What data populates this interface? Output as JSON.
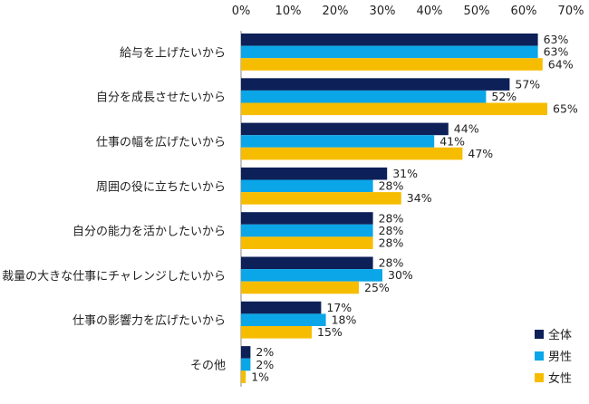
{
  "chart_data": {
    "type": "bar",
    "orientation": "horizontal",
    "categories": [
      "給与を上げたいから",
      "自分を成長させたいから",
      "仕事の幅を広げたいから",
      "周囲の役に立ちたいから",
      "自分の能力を活かしたいから",
      "裁量の大きな仕事にチャレンジしたいから",
      "仕事の影響力を広げたいから",
      "その他"
    ],
    "series": [
      {
        "name": "全体",
        "color": "#0d2158",
        "values": [
          63,
          57,
          44,
          31,
          28,
          28,
          17,
          2
        ]
      },
      {
        "name": "男性",
        "color": "#0aa6e8",
        "values": [
          63,
          52,
          41,
          28,
          28,
          30,
          18,
          2
        ]
      },
      {
        "name": "女性",
        "color": "#f6bd00",
        "values": [
          64,
          65,
          47,
          34,
          28,
          25,
          15,
          1
        ]
      }
    ],
    "x_ticks": [
      "0%",
      "10%",
      "20%",
      "30%",
      "40%",
      "50%",
      "60%",
      "70%"
    ],
    "xlim": [
      0,
      70
    ],
    "value_suffix": "%",
    "grid": false,
    "legend_position": "bottom-right",
    "title": "",
    "xlabel": "",
    "ylabel": ""
  }
}
